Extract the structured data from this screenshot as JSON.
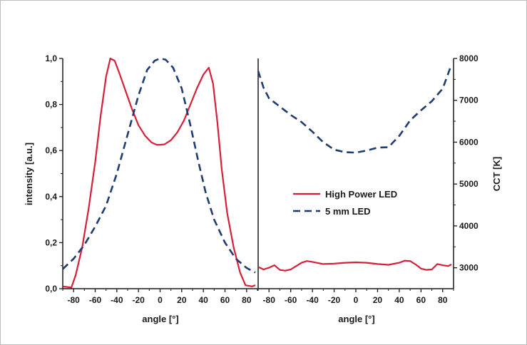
{
  "chart_data": [
    {
      "type": "line",
      "panel": "left",
      "xlabel": "angle [°]",
      "ylabel": "intensity [a.u.]",
      "xlim": [
        -90,
        90
      ],
      "ylim": [
        0,
        1.0
      ],
      "x_ticks": [
        -80,
        -60,
        -40,
        -20,
        0,
        20,
        40,
        60,
        80
      ],
      "x_tick_labels": [
        "-80",
        "-60",
        "-40",
        "-20",
        "0",
        "20",
        "40",
        "60",
        "80"
      ],
      "y_ticks": [
        0,
        0.2,
        0.4,
        0.6,
        0.8,
        1.0
      ],
      "y_tick_labels": [
        "0,0",
        "0,2",
        "0,4",
        "0,6",
        "0,8",
        "1,0"
      ],
      "series": [
        {
          "name": "High Power LED",
          "color": "#d6203a",
          "style": "solid",
          "points": [
            [
              -90,
              0.01
            ],
            [
              -82,
              0.005
            ],
            [
              -78,
              0.06
            ],
            [
              -72,
              0.18
            ],
            [
              -66,
              0.35
            ],
            [
              -60,
              0.55
            ],
            [
              -55,
              0.75
            ],
            [
              -50,
              0.92
            ],
            [
              -46,
              1.0
            ],
            [
              -42,
              0.99
            ],
            [
              -38,
              0.94
            ],
            [
              -32,
              0.86
            ],
            [
              -26,
              0.78
            ],
            [
              -20,
              0.71
            ],
            [
              -14,
              0.665
            ],
            [
              -8,
              0.635
            ],
            [
              -3,
              0.625
            ],
            [
              0,
              0.625
            ],
            [
              4,
              0.627
            ],
            [
              10,
              0.645
            ],
            [
              16,
              0.68
            ],
            [
              22,
              0.73
            ],
            [
              28,
              0.8
            ],
            [
              34,
              0.87
            ],
            [
              40,
              0.93
            ],
            [
              45,
              0.96
            ],
            [
              49,
              0.89
            ],
            [
              53,
              0.72
            ],
            [
              57,
              0.52
            ],
            [
              62,
              0.33
            ],
            [
              68,
              0.18
            ],
            [
              74,
              0.07
            ],
            [
              79,
              0.015
            ],
            [
              85,
              0.01
            ],
            [
              88,
              0.015
            ]
          ]
        },
        {
          "name": "5 mm LED",
          "color": "#1f3c73",
          "style": "dashed",
          "points": [
            [
              -90,
              0.085
            ],
            [
              -80,
              0.13
            ],
            [
              -70,
              0.19
            ],
            [
              -60,
              0.27
            ],
            [
              -50,
              0.36
            ],
            [
              -40,
              0.5
            ],
            [
              -30,
              0.67
            ],
            [
              -20,
              0.84
            ],
            [
              -12,
              0.95
            ],
            [
              -5,
              0.99
            ],
            [
              0,
              1.0
            ],
            [
              5,
              0.995
            ],
            [
              12,
              0.96
            ],
            [
              20,
              0.87
            ],
            [
              28,
              0.71
            ],
            [
              35,
              0.56
            ],
            [
              42,
              0.42
            ],
            [
              50,
              0.3
            ],
            [
              60,
              0.2
            ],
            [
              70,
              0.13
            ],
            [
              80,
              0.09
            ],
            [
              88,
              0.07
            ]
          ]
        }
      ]
    },
    {
      "type": "line",
      "panel": "right",
      "xlabel": "angle [°]",
      "ylabel": "CCT [K]",
      "xlim": [
        -90,
        90
      ],
      "ylim": [
        2500,
        8000
      ],
      "x_ticks": [
        -80,
        -60,
        -40,
        -20,
        0,
        20,
        40,
        60,
        80
      ],
      "x_tick_labels": [
        "-80",
        "-60",
        "-40",
        "-20",
        "0",
        "20",
        "40",
        "60",
        "80"
      ],
      "y_ticks": [
        3000,
        4000,
        5000,
        6000,
        7000,
        8000
      ],
      "y_tick_labels": [
        "3000",
        "4000",
        "5000",
        "6000",
        "7000",
        "8000"
      ],
      "legend": {
        "placement": "center",
        "items": [
          {
            "name": "High Power LED",
            "color": "#d6203a",
            "style": "solid"
          },
          {
            "name": "5 mm LED",
            "color": "#1f3c73",
            "style": "dashed"
          }
        ]
      },
      "series": [
        {
          "name": "High Power LED",
          "color": "#d6203a",
          "style": "solid",
          "points": [
            [
              -90,
              3020
            ],
            [
              -85,
              2960
            ],
            [
              -80,
              3000
            ],
            [
              -75,
              3060
            ],
            [
              -70,
              2950
            ],
            [
              -65,
              2930
            ],
            [
              -60,
              2960
            ],
            [
              -55,
              3040
            ],
            [
              -50,
              3120
            ],
            [
              -45,
              3160
            ],
            [
              -40,
              3140
            ],
            [
              -30,
              3090
            ],
            [
              -20,
              3100
            ],
            [
              -10,
              3120
            ],
            [
              0,
              3130
            ],
            [
              10,
              3120
            ],
            [
              20,
              3090
            ],
            [
              30,
              3070
            ],
            [
              40,
              3120
            ],
            [
              45,
              3170
            ],
            [
              50,
              3160
            ],
            [
              55,
              3080
            ],
            [
              60,
              2980
            ],
            [
              65,
              2950
            ],
            [
              70,
              2960
            ],
            [
              75,
              3090
            ],
            [
              80,
              3060
            ],
            [
              85,
              3040
            ],
            [
              88,
              3080
            ]
          ]
        },
        {
          "name": "5 mm LED",
          "color": "#1f3c73",
          "style": "dashed",
          "points": [
            [
              -90,
              7700
            ],
            [
              -85,
              7300
            ],
            [
              -80,
              7050
            ],
            [
              -70,
              6850
            ],
            [
              -60,
              6650
            ],
            [
              -50,
              6480
            ],
            [
              -40,
              6250
            ],
            [
              -30,
              6000
            ],
            [
              -20,
              5820
            ],
            [
              -10,
              5760
            ],
            [
              0,
              5750
            ],
            [
              10,
              5800
            ],
            [
              20,
              5870
            ],
            [
              30,
              5880
            ],
            [
              40,
              6150
            ],
            [
              50,
              6520
            ],
            [
              60,
              6760
            ],
            [
              70,
              6980
            ],
            [
              80,
              7280
            ],
            [
              88,
              7850
            ]
          ]
        }
      ]
    }
  ]
}
